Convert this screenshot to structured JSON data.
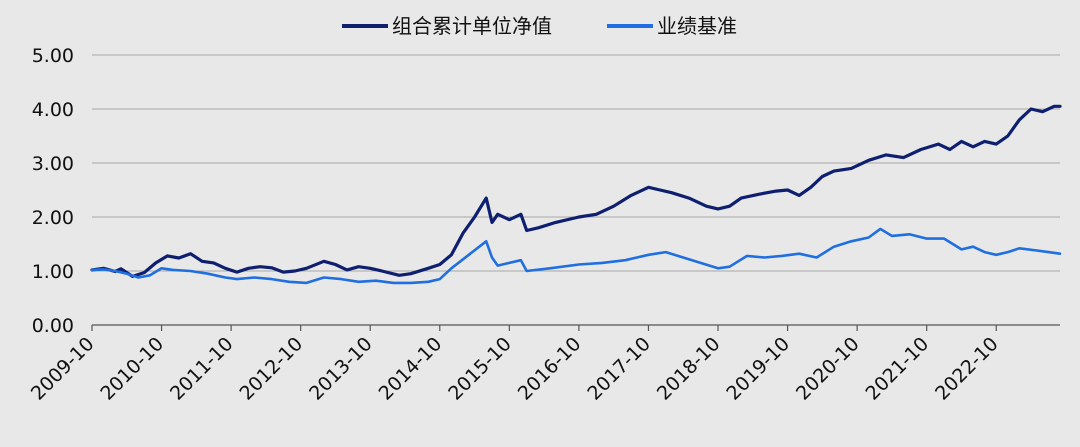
{
  "chart_data": {
    "type": "line",
    "title": "",
    "xlabel": "",
    "ylabel": "",
    "ylim": [
      0,
      5
    ],
    "yticks": [
      "0.00",
      "1.00",
      "2.00",
      "3.00",
      "4.00",
      "5.00"
    ],
    "xlim": [
      "2009-10",
      "2023-09"
    ],
    "xticks": [
      "2009-10",
      "2010-10",
      "2011-10",
      "2012-10",
      "2013-10",
      "2014-10",
      "2015-10",
      "2016-10",
      "2017-10",
      "2018-10",
      "2019-10",
      "2020-10",
      "2021-10",
      "2022-10"
    ],
    "grid": "horizontal",
    "legend_position": "top-center",
    "series": [
      {
        "name": "组合累计单位净值",
        "color": "#0d1f6e",
        "points": [
          [
            "2009-10",
            1.02
          ],
          [
            "2009-12",
            1.05
          ],
          [
            "2010-02",
            0.99
          ],
          [
            "2010-03",
            1.04
          ],
          [
            "2010-05",
            0.9
          ],
          [
            "2010-07",
            0.97
          ],
          [
            "2010-09",
            1.15
          ],
          [
            "2010-11",
            1.28
          ],
          [
            "2011-01",
            1.24
          ],
          [
            "2011-03",
            1.32
          ],
          [
            "2011-05",
            1.18
          ],
          [
            "2011-07",
            1.15
          ],
          [
            "2011-09",
            1.05
          ],
          [
            "2011-11",
            0.98
          ],
          [
            "2012-01",
            1.05
          ],
          [
            "2012-03",
            1.08
          ],
          [
            "2012-05",
            1.06
          ],
          [
            "2012-07",
            0.98
          ],
          [
            "2012-09",
            1.0
          ],
          [
            "2012-11",
            1.05
          ],
          [
            "2013-02",
            1.18
          ],
          [
            "2013-04",
            1.12
          ],
          [
            "2013-06",
            1.02
          ],
          [
            "2013-08",
            1.08
          ],
          [
            "2013-10",
            1.05
          ],
          [
            "2013-12",
            1.0
          ],
          [
            "2014-03",
            0.92
          ],
          [
            "2014-05",
            0.95
          ],
          [
            "2014-08",
            1.05
          ],
          [
            "2014-10",
            1.12
          ],
          [
            "2014-12",
            1.3
          ],
          [
            "2015-02",
            1.7
          ],
          [
            "2015-04",
            2.0
          ],
          [
            "2015-06",
            2.35
          ],
          [
            "2015-07",
            1.9
          ],
          [
            "2015-08",
            2.05
          ],
          [
            "2015-10",
            1.95
          ],
          [
            "2015-12",
            2.05
          ],
          [
            "2016-01",
            1.75
          ],
          [
            "2016-03",
            1.8
          ],
          [
            "2016-06",
            1.9
          ],
          [
            "2016-10",
            2.0
          ],
          [
            "2017-01",
            2.05
          ],
          [
            "2017-04",
            2.2
          ],
          [
            "2017-07",
            2.4
          ],
          [
            "2017-10",
            2.55
          ],
          [
            "2017-12",
            2.5
          ],
          [
            "2018-02",
            2.45
          ],
          [
            "2018-05",
            2.35
          ],
          [
            "2018-08",
            2.2
          ],
          [
            "2018-10",
            2.15
          ],
          [
            "2018-12",
            2.2
          ],
          [
            "2019-02",
            2.35
          ],
          [
            "2019-05",
            2.42
          ],
          [
            "2019-08",
            2.48
          ],
          [
            "2019-10",
            2.5
          ],
          [
            "2019-12",
            2.4
          ],
          [
            "2020-02",
            2.55
          ],
          [
            "2020-04",
            2.75
          ],
          [
            "2020-06",
            2.85
          ],
          [
            "2020-09",
            2.9
          ],
          [
            "2020-12",
            3.05
          ],
          [
            "2021-03",
            3.15
          ],
          [
            "2021-06",
            3.1
          ],
          [
            "2021-09",
            3.25
          ],
          [
            "2021-12",
            3.35
          ],
          [
            "2022-02",
            3.25
          ],
          [
            "2022-04",
            3.4
          ],
          [
            "2022-06",
            3.3
          ],
          [
            "2022-08",
            3.4
          ],
          [
            "2022-10",
            3.35
          ],
          [
            "2022-12",
            3.5
          ],
          [
            "2023-02",
            3.8
          ],
          [
            "2023-04",
            4.0
          ],
          [
            "2023-06",
            3.95
          ],
          [
            "2023-08",
            4.05
          ],
          [
            "2023-09",
            4.05
          ]
        ]
      },
      {
        "name": "业绩基准",
        "color": "#1f6fe0",
        "points": [
          [
            "2009-10",
            1.02
          ],
          [
            "2009-12",
            1.03
          ],
          [
            "2010-02",
            1.0
          ],
          [
            "2010-04",
            0.95
          ],
          [
            "2010-06",
            0.88
          ],
          [
            "2010-08",
            0.92
          ],
          [
            "2010-10",
            1.05
          ],
          [
            "2010-12",
            1.02
          ],
          [
            "2011-03",
            1.0
          ],
          [
            "2011-06",
            0.95
          ],
          [
            "2011-09",
            0.88
          ],
          [
            "2011-11",
            0.85
          ],
          [
            "2012-02",
            0.88
          ],
          [
            "2012-05",
            0.85
          ],
          [
            "2012-08",
            0.8
          ],
          [
            "2012-11",
            0.78
          ],
          [
            "2013-02",
            0.88
          ],
          [
            "2013-05",
            0.85
          ],
          [
            "2013-08",
            0.8
          ],
          [
            "2013-11",
            0.82
          ],
          [
            "2014-02",
            0.78
          ],
          [
            "2014-05",
            0.78
          ],
          [
            "2014-08",
            0.8
          ],
          [
            "2014-10",
            0.85
          ],
          [
            "2014-12",
            1.05
          ],
          [
            "2015-03",
            1.3
          ],
          [
            "2015-06",
            1.55
          ],
          [
            "2015-07",
            1.25
          ],
          [
            "2015-08",
            1.1
          ],
          [
            "2015-10",
            1.15
          ],
          [
            "2015-12",
            1.2
          ],
          [
            "2016-01",
            1.0
          ],
          [
            "2016-05",
            1.05
          ],
          [
            "2016-10",
            1.12
          ],
          [
            "2017-02",
            1.15
          ],
          [
            "2017-06",
            1.2
          ],
          [
            "2017-10",
            1.3
          ],
          [
            "2018-01",
            1.35
          ],
          [
            "2018-04",
            1.25
          ],
          [
            "2018-07",
            1.15
          ],
          [
            "2018-10",
            1.05
          ],
          [
            "2018-12",
            1.08
          ],
          [
            "2019-03",
            1.28
          ],
          [
            "2019-06",
            1.25
          ],
          [
            "2019-09",
            1.28
          ],
          [
            "2019-12",
            1.32
          ],
          [
            "2020-03",
            1.25
          ],
          [
            "2020-06",
            1.45
          ],
          [
            "2020-09",
            1.55
          ],
          [
            "2020-12",
            1.62
          ],
          [
            "2021-02",
            1.78
          ],
          [
            "2021-04",
            1.65
          ],
          [
            "2021-07",
            1.68
          ],
          [
            "2021-10",
            1.6
          ],
          [
            "2022-01",
            1.6
          ],
          [
            "2022-04",
            1.4
          ],
          [
            "2022-06",
            1.45
          ],
          [
            "2022-08",
            1.35
          ],
          [
            "2022-10",
            1.3
          ],
          [
            "2022-12",
            1.35
          ],
          [
            "2023-02",
            1.42
          ],
          [
            "2023-05",
            1.38
          ],
          [
            "2023-07",
            1.35
          ],
          [
            "2023-09",
            1.32
          ]
        ]
      }
    ]
  }
}
